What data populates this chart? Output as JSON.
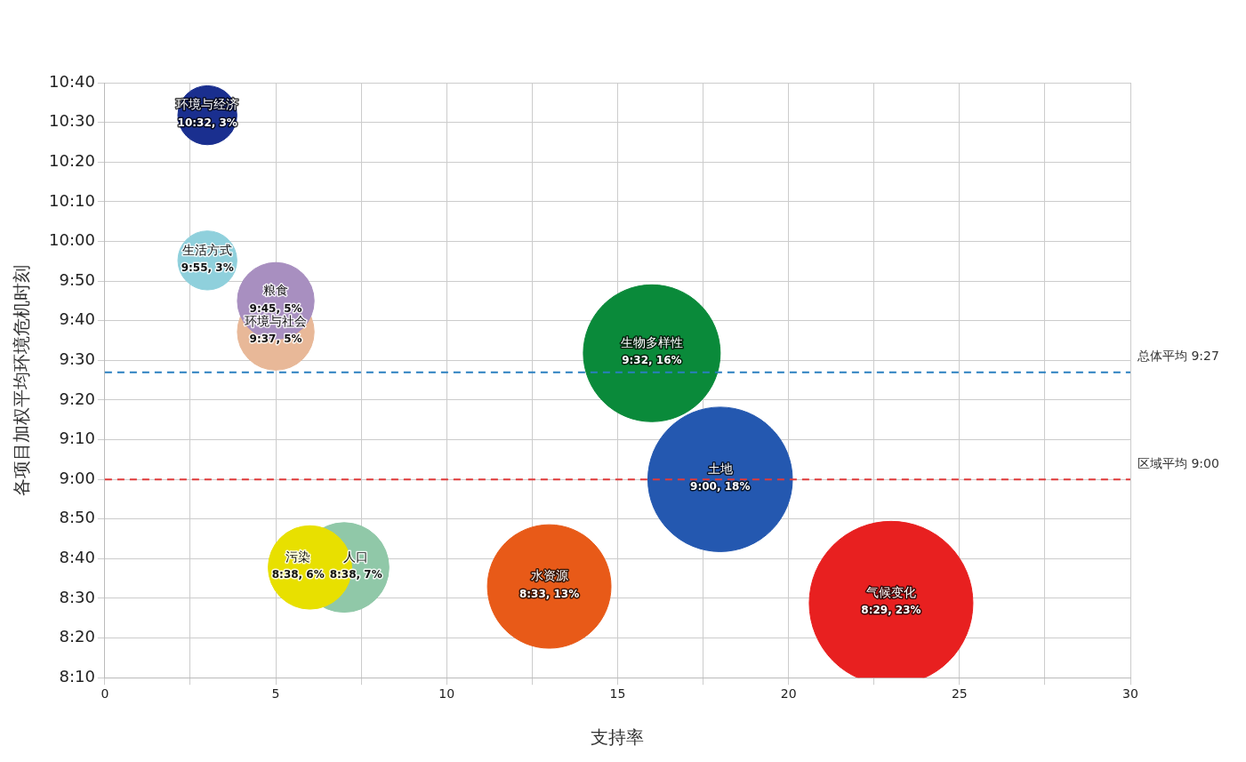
{
  "chart_data": {
    "type": "bubble",
    "xlabel": "支持率",
    "ylabel": "各项目加权平均环境危机时刻",
    "xlim": [
      0,
      30
    ],
    "xticks": [
      0,
      {
        "value": 2.5,
        "label": null
      },
      5,
      {
        "value": 7.5,
        "label": null
      },
      10,
      {
        "value": 12.5,
        "label": null
      },
      15,
      {
        "value": 17.5,
        "label": null
      },
      20,
      {
        "value": 22.5,
        "label": null
      },
      25,
      {
        "value": 27.5,
        "label": null
      },
      30
    ],
    "ylim": [
      8.1667,
      10.6667
    ],
    "yticks": [
      {
        "value": 8.1667,
        "label": "8:10"
      },
      {
        "value": 8.3333,
        "label": "8:20"
      },
      {
        "value": 8.5,
        "label": "8:30"
      },
      {
        "value": 8.6667,
        "label": "8:40"
      },
      {
        "value": 8.8333,
        "label": "8:50"
      },
      {
        "value": 9,
        "label": "9:00"
      },
      {
        "value": 9.1667,
        "label": "9:10"
      },
      {
        "value": 9.3333,
        "label": "9:20"
      },
      {
        "value": 9.5,
        "label": "9:30"
      },
      {
        "value": 9.6667,
        "label": "9:40"
      },
      {
        "value": 9.8333,
        "label": "9:50"
      },
      {
        "value": 10,
        "label": "10:00"
      },
      {
        "value": 10.1667,
        "label": "10:10"
      },
      {
        "value": 10.3333,
        "label": "10:20"
      },
      {
        "value": 10.5,
        "label": "10:30"
      },
      {
        "value": 10.6667,
        "label": "10:40"
      }
    ],
    "grid": true,
    "ref_lines": [
      {
        "axis": "y",
        "value": 9.45,
        "label": "总体平均 9:27",
        "color": "#2a7fc0",
        "line_style": "dashed"
      },
      {
        "axis": "y",
        "value": 9,
        "label": "区域平均 9:00",
        "color": "#e03a3a",
        "line_style": "dashed"
      }
    ],
    "series": [
      {
        "name": "环境与经济",
        "color": "#1a2f8f",
        "x": [
          3
        ],
        "values": [
          10.53
        ],
        "sizes": [
          0.13
        ],
        "value_labels": [
          "10:32, 3%"
        ]
      },
      {
        "name": "生活方式",
        "color": "#8fd0dc",
        "x": [
          3
        ],
        "values": [
          9.92
        ],
        "sizes": [
          0.13
        ],
        "value_labels": [
          "9:55, 3%"
        ]
      },
      {
        "name": "粮食",
        "color": "#a88fc0",
        "x": [
          5
        ],
        "values": [
          9.75
        ],
        "sizes": [
          0.22
        ],
        "value_labels": [
          "9:45, 5%"
        ]
      },
      {
        "name": "环境与社会",
        "color": "#e8b898",
        "x": [
          5
        ],
        "values": [
          9.62
        ],
        "sizes": [
          0.22
        ],
        "value_labels": [
          "9:37, 5%"
        ]
      },
      {
        "name": "生物多样性",
        "color": "#0a8a3a",
        "x": [
          16
        ],
        "values": [
          9.53
        ],
        "sizes": [
          0.7
        ],
        "value_labels": [
          "9:32, 16%"
        ]
      },
      {
        "name": "土地",
        "color": "#2458b0",
        "x": [
          18
        ],
        "values": [
          9
        ],
        "sizes": [
          0.78
        ],
        "value_labels": [
          "9:00, 18%"
        ]
      },
      {
        "name": "污染",
        "color": "#e8e000",
        "x": [
          6
        ],
        "values": [
          8.63
        ],
        "sizes": [
          0.26
        ],
        "value_labels": [
          "8:38, 6%"
        ]
      },
      {
        "name": "人口",
        "color": "#90c8a8",
        "x": [
          7
        ],
        "values": [
          8.63
        ],
        "sizes": [
          0.3
        ],
        "value_labels": [
          "8:38, 7%"
        ]
      },
      {
        "name": "水资源",
        "color": "#e85a18",
        "x": [
          13
        ],
        "values": [
          8.55
        ],
        "sizes": [
          0.57
        ],
        "value_labels": [
          "8:33, 13%"
        ]
      },
      {
        "name": "气候变化",
        "color": "#e82020",
        "x": [
          23
        ],
        "values": [
          8.48
        ],
        "sizes": [
          1
        ],
        "value_labels": [
          "8:29, 23%"
        ]
      }
    ]
  }
}
